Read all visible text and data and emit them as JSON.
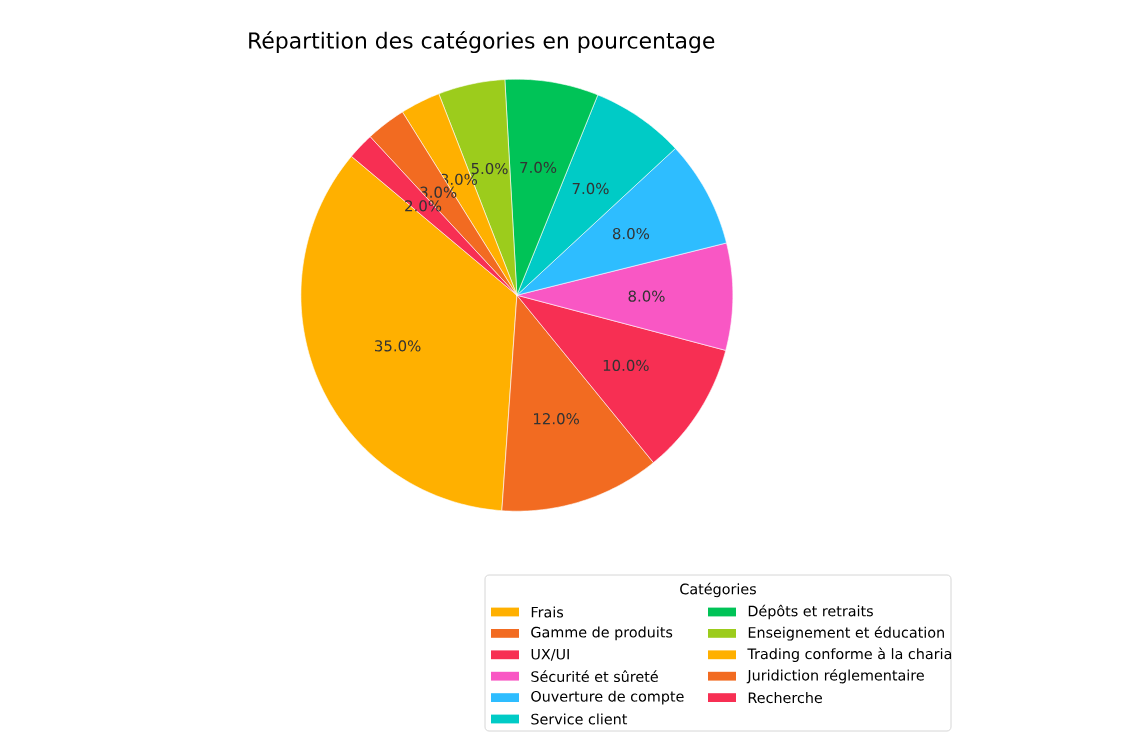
{
  "chart_data": {
    "type": "pie",
    "title": "Répartition des catégories en pourcentage",
    "legend_title": "Catégories",
    "legend": "bottom",
    "categories": [
      "Frais",
      "Gamme de produits",
      "UX/UI",
      "Sécurité et sûreté",
      "Ouverture de compte",
      "Service client",
      "Dépôts et retraits",
      "Enseignement et éducation",
      "Trading conforme à la charia",
      "Juridiction réglementaire",
      "Recherche"
    ],
    "values": [
      35,
      12,
      10,
      8,
      8,
      7,
      7,
      5,
      3,
      3,
      2
    ],
    "value_labels": [
      "35.0%",
      "12.0%",
      "10.0%",
      "8.0%",
      "8.0%",
      "7.0%",
      "7.0%",
      "5.0%",
      "3.0%",
      "3.0%",
      "2.0%"
    ],
    "colors": [
      "#ffb000",
      "#f26b21",
      "#f72f53",
      "#f957c4",
      "#2ebdff",
      "#00cbc6",
      "#00c357",
      "#9ccc1c",
      "#ffb000",
      "#f26b21",
      "#f72f53"
    ]
  }
}
